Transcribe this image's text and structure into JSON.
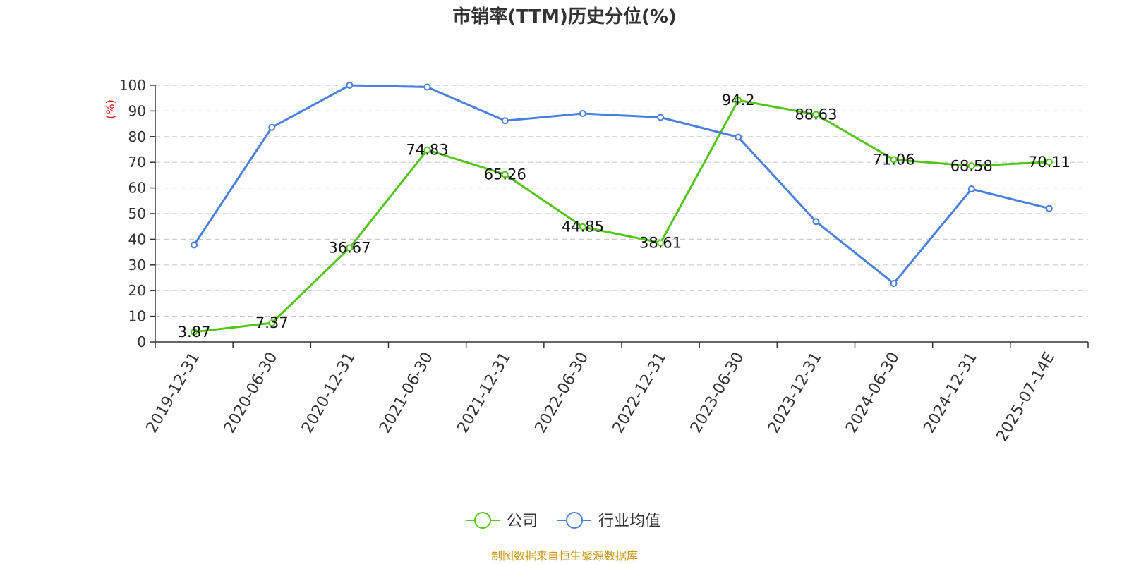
{
  "chart_data": {
    "type": "line",
    "title": "市销率(TTM)历史分位(%)",
    "ylabel": "(%)",
    "ylim": [
      0,
      100
    ],
    "yticks": [
      0,
      10,
      20,
      30,
      40,
      50,
      60,
      70,
      80,
      90,
      100
    ],
    "grid": true,
    "legend_position": "bottom-center",
    "categories": [
      "2019-12-31",
      "2020-06-30",
      "2020-12-31",
      "2021-06-30",
      "2021-12-31",
      "2022-06-30",
      "2022-12-31",
      "2023-06-30",
      "2023-12-31",
      "2024-06-30",
      "2024-12-31",
      "2025-07-14E"
    ],
    "series": [
      {
        "name": "公司",
        "color": "#52c41a",
        "values": [
          3.87,
          7.37,
          36.67,
          74.83,
          65.26,
          44.85,
          38.61,
          94.2,
          88.63,
          71.06,
          68.58,
          70.11
        ],
        "data_labels": [
          "3.87",
          "7.37",
          "36.67",
          "74.83",
          "65.26",
          "44.85",
          "38.61",
          "94.2",
          "88.63",
          "71.06",
          "68.58",
          "70.11"
        ]
      },
      {
        "name": "行业均值",
        "color": "#4a7fe0",
        "values": [
          37.8,
          83.6,
          100,
          99.3,
          86.2,
          89.0,
          87.5,
          79.8,
          46.9,
          22.8,
          59.6,
          52.0
        ]
      }
    ]
  },
  "source_text": "制图数据来自恒生聚源数据库",
  "colors": {
    "axis": "#333333",
    "grid": "#cccccc",
    "title": "#333333",
    "ylabel": "#e00000",
    "source": "#c8960c"
  }
}
